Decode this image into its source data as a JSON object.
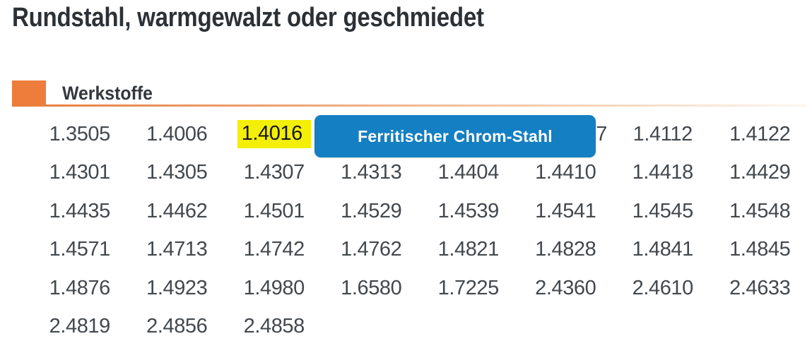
{
  "page": {
    "title": "Rundstahl, warmgewalzt oder geschmiedet"
  },
  "section": {
    "heading": "Werkstoffe"
  },
  "tooltip": {
    "label": "Ferritischer Chrom-Stahl"
  },
  "materials": {
    "highlighted_value": "1.4016",
    "highlight_cell": [
      0,
      2
    ],
    "partial_cell": [
      0,
      5
    ],
    "rows": [
      [
        "1.3505",
        "1.4006",
        "1.4016",
        "",
        "",
        "7",
        "1.4112",
        "1.4122"
      ],
      [
        "1.4301",
        "1.4305",
        "1.4307",
        "1.4313",
        "1.4404",
        "1.4410",
        "1.4418",
        "1.4429"
      ],
      [
        "1.4435",
        "1.4462",
        "1.4501",
        "1.4529",
        "1.4539",
        "1.4541",
        "1.4545",
        "1.4548"
      ],
      [
        "1.4571",
        "1.4713",
        "1.4742",
        "1.4762",
        "1.4821",
        "1.4828",
        "1.4841",
        "1.4845"
      ],
      [
        "1.4876",
        "1.4923",
        "1.4980",
        "1.6580",
        "1.7225",
        "2.4360",
        "2.4610",
        "2.4633"
      ],
      [
        "2.4819",
        "2.4856",
        "2.4858",
        "",
        "",
        "",
        "",
        ""
      ]
    ]
  },
  "colors": {
    "accent_orange": "#ee7d3c",
    "highlight_yellow": "#f3ef06",
    "tooltip_blue": "#147fc2",
    "title_text": "#2c3136",
    "number_text": "#43484d"
  }
}
